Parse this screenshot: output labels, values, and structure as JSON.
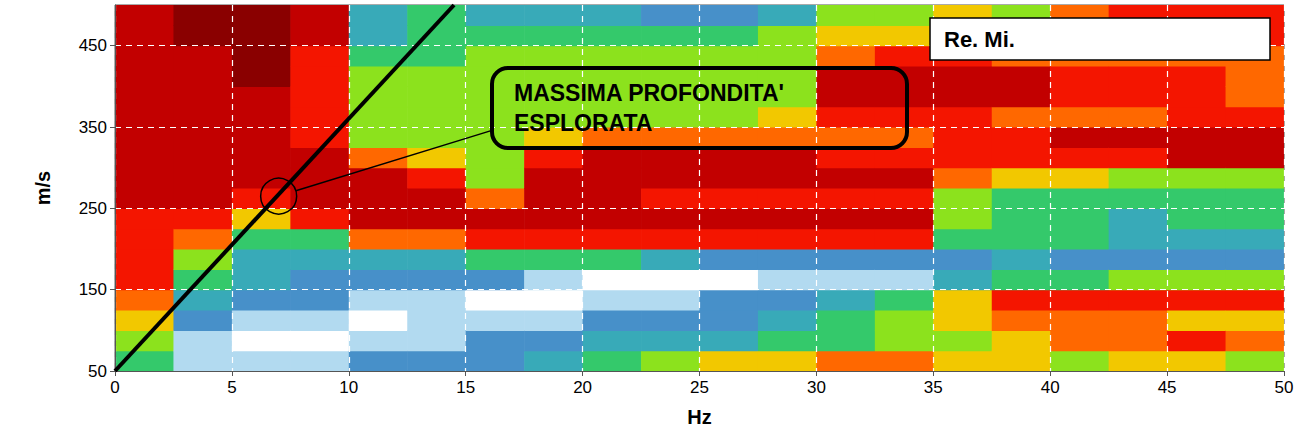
{
  "chart_data": {
    "type": "heatmap",
    "x_label": "Hz",
    "y_label": "m/s",
    "xlim": [
      0,
      50
    ],
    "xticks": [
      0,
      5,
      10,
      15,
      20,
      25,
      30,
      35,
      40,
      45,
      50
    ],
    "ylim": [
      50,
      500
    ],
    "yticks": [
      50,
      150,
      250,
      350,
      450
    ],
    "grid": true,
    "label": "Re. Mi.",
    "annotation": {
      "text": "MASSIMA PROFONDITA' ESPLORATA",
      "point": [
        7,
        265
      ]
    },
    "line": {
      "x": [
        0,
        14.5
      ],
      "y": [
        50,
        500
      ],
      "color": "#000000"
    },
    "zlim": [
      0,
      10
    ],
    "heatmap": {
      "x": [
        1.25,
        3.75,
        6.25,
        8.75,
        11.25,
        13.75,
        16.25,
        18.75,
        21.25,
        23.75,
        26.25,
        28.75,
        31.25,
        33.75,
        36.25,
        38.75,
        41.25,
        43.75,
        46.25,
        48.75
      ],
      "y": [
        62.5,
        87.5,
        112.5,
        137.5,
        162.5,
        187.5,
        212.5,
        237.5,
        262.5,
        287.5,
        312.5,
        337.5,
        362.5,
        387.5,
        412.5,
        437.5,
        462.5,
        487.5
      ],
      "z": [
        [
          4,
          5,
          6,
          7,
          8,
          8,
          8,
          8,
          9,
          9,
          9,
          9,
          9,
          9,
          9,
          9,
          9,
          9
        ],
        [
          1,
          1,
          2,
          3,
          4,
          5,
          7,
          8,
          9,
          9,
          9,
          9,
          9,
          9,
          9,
          9,
          10,
          10
        ],
        [
          1,
          0,
          1,
          2,
          3,
          3,
          4,
          6,
          8,
          9,
          9,
          9,
          9,
          9,
          10,
          10,
          10,
          10
        ],
        [
          1,
          0,
          1,
          2,
          2,
          3,
          4,
          8,
          9,
          9,
          9,
          8,
          8,
          8,
          8,
          8,
          9,
          9
        ],
        [
          2,
          1,
          0,
          1,
          2,
          3,
          7,
          9,
          9,
          9,
          7,
          5,
          5,
          5,
          5,
          4,
          3,
          3
        ],
        [
          2,
          1,
          1,
          1,
          2,
          3,
          7,
          9,
          9,
          8,
          6,
          5,
          5,
          5,
          5,
          4,
          4,
          4
        ],
        [
          2,
          2,
          1,
          0,
          2,
          4,
          8,
          9,
          7,
          5,
          5,
          5,
          5,
          5,
          5,
          5,
          4,
          3
        ],
        [
          3,
          2,
          1,
          0,
          1,
          4,
          8,
          9,
          9,
          9,
          8,
          6,
          5,
          5,
          5,
          5,
          4,
          3
        ],
        [
          4,
          3,
          2,
          1,
          0,
          4,
          8,
          9,
          9,
          9,
          9,
          7,
          5,
          5,
          5,
          5,
          4,
          3
        ],
        [
          5,
          3,
          2,
          1,
          0,
          3,
          8,
          9,
          8,
          9,
          9,
          7,
          5,
          5,
          5,
          5,
          4,
          2
        ],
        [
          6,
          3,
          2,
          2,
          0,
          2,
          8,
          9,
          8,
          9,
          9,
          7,
          5,
          5,
          5,
          5,
          4,
          2
        ],
        [
          6,
          4,
          3,
          2,
          1,
          2,
          8,
          9,
          8,
          9,
          9,
          7,
          6,
          5,
          5,
          5,
          5,
          3
        ],
        [
          7,
          4,
          4,
          3,
          1,
          2,
          8,
          9,
          8,
          9,
          8,
          7,
          8,
          9,
          9,
          7,
          6,
          5
        ],
        [
          7,
          5,
          5,
          4,
          1,
          2,
          8,
          9,
          8,
          9,
          8,
          7,
          8,
          9,
          9,
          8,
          6,
          5
        ],
        [
          6,
          5,
          6,
          6,
          3,
          2,
          4,
          5,
          5,
          7,
          8,
          8,
          8,
          9,
          9,
          8,
          6,
          6
        ],
        [
          6,
          6,
          7,
          8,
          4,
          3,
          4,
          4,
          4,
          6,
          8,
          8,
          7,
          9,
          9,
          7,
          5,
          5
        ],
        [
          5,
          7,
          7,
          8,
          4,
          2,
          4,
          4,
          4,
          6,
          8,
          9,
          7,
          8,
          8,
          7,
          6,
          7
        ],
        [
          6,
          7,
          7,
          8,
          5,
          2,
          3,
          3,
          4,
          5,
          8,
          9,
          7,
          8,
          8,
          7,
          7,
          8
        ],
        [
          6,
          8,
          6,
          8,
          5,
          2,
          3,
          4,
          4,
          5,
          9,
          9,
          8,
          8,
          8,
          7,
          7,
          8
        ],
        [
          5,
          7,
          6,
          8,
          5,
          2,
          3,
          4,
          4,
          5,
          9,
          9,
          8,
          7,
          7,
          7,
          8,
          8
        ]
      ]
    }
  }
}
